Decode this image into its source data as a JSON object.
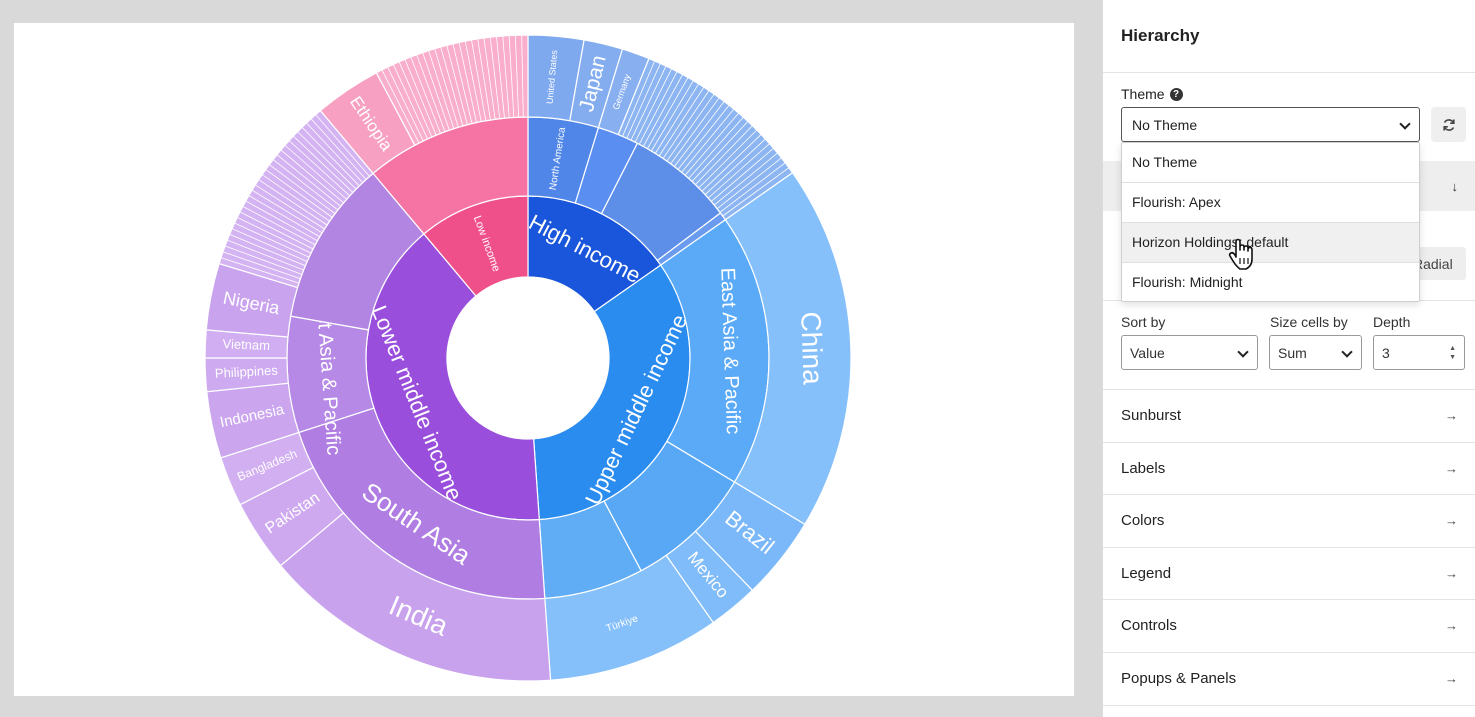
{
  "chart_data": {
    "type": "sunburst",
    "rings": {
      "income": [
        {
          "label": "High income",
          "color": "#1a56db",
          "start": 0,
          "end": 55
        },
        {
          "label": "Upper middle income",
          "color": "#2b8cf0",
          "start": 55,
          "end": 176
        },
        {
          "label": "Lower middle income",
          "color": "#9a4fdc",
          "start": 176,
          "end": 320
        },
        {
          "label": "Low income",
          "color": "#f0508a",
          "start": 320,
          "end": 360
        }
      ],
      "region": [
        {
          "label": "North America",
          "color": "#4f86e8",
          "start": 0,
          "end": 17
        },
        {
          "label": "",
          "color": "#5a8ef0",
          "start": 17,
          "end": 27
        },
        {
          "label": "",
          "color": "#5d8ee8",
          "start": 27,
          "end": 53
        },
        {
          "label": "",
          "color": "#6a9bef",
          "start": 53,
          "end": 55
        },
        {
          "label": "East Asia & Pacific",
          "color": "#5aaaf7",
          "start": 55,
          "end": 121
        },
        {
          "label": "",
          "color": "#58a8f5",
          "start": 121,
          "end": 152
        },
        {
          "label": "",
          "color": "#60adf6",
          "start": 152,
          "end": 176
        },
        {
          "label": "South Asia",
          "color": "#b07ee2",
          "start": 176,
          "end": 252
        },
        {
          "label": "East Asia & Pacific",
          "color": "#b689e6",
          "start": 252,
          "end": 280
        },
        {
          "label": "",
          "color": "#b385e3",
          "start": 280,
          "end": 320
        },
        {
          "label": "",
          "color": "#f674a4",
          "start": 320,
          "end": 360
        }
      ],
      "country": [
        {
          "label": "United States",
          "color": "#7ea9ee",
          "start": 0,
          "end": 10
        },
        {
          "label": "Japan",
          "color": "#84adf0",
          "start": 10,
          "end": 17
        },
        {
          "label": "Germany",
          "color": "#88b0f0",
          "start": 17,
          "end": 22
        },
        {
          "label": "",
          "color": "#8db5f2",
          "start": 22,
          "end": 55
        },
        {
          "label": "China",
          "color": "#85c0fb",
          "start": 55,
          "end": 121
        },
        {
          "label": "Brazil",
          "color": "#7ab8f9",
          "start": 121,
          "end": 136
        },
        {
          "label": "Mexico",
          "color": "#80bcf9",
          "start": 136,
          "end": 145
        },
        {
          "label": "Türkiye",
          "color": "#86c0fa",
          "start": 145,
          "end": 176
        },
        {
          "label": "India",
          "color": "#c9a2ee",
          "start": 176,
          "end": 230
        },
        {
          "label": "Pakistan",
          "color": "#cfa9f0",
          "start": 230,
          "end": 243
        },
        {
          "label": "Bangladesh",
          "color": "#d2aff1",
          "start": 243,
          "end": 252
        },
        {
          "label": "Indonesia",
          "color": "#cba6ef",
          "start": 252,
          "end": 264
        },
        {
          "label": "Philippines",
          "color": "#ceaaf0",
          "start": 264,
          "end": 270
        },
        {
          "label": "Vietnam",
          "color": "#d1aef1",
          "start": 270,
          "end": 275
        },
        {
          "label": "Nigeria",
          "color": "#c9a3ee",
          "start": 275,
          "end": 287
        },
        {
          "label": "",
          "color": "#d4b3f2",
          "start": 287,
          "end": 320
        },
        {
          "label": "Ethiopia",
          "color": "#f7a0c1",
          "start": 320,
          "end": 332
        },
        {
          "label": "",
          "color": "#f9aecb",
          "start": 332,
          "end": 360
        }
      ]
    }
  },
  "panel": {
    "title": "Hierarchy",
    "theme": {
      "label": "Theme",
      "help_icon": "question-circle-icon",
      "selected": "No Theme",
      "options": [
        "No Theme",
        "Flourish: Apex",
        "Horizon Holdings: default",
        "Flourish: Midnight"
      ],
      "hovered_index": 2,
      "refresh_icon": "refresh-icon"
    },
    "radial_label": "Radial",
    "sort_by": {
      "label": "Sort by",
      "value": "Value"
    },
    "size_cells_by": {
      "label": "Size cells by",
      "value": "Sum"
    },
    "depth": {
      "label": "Depth",
      "value": "3"
    },
    "sections": [
      "Sunburst",
      "Labels",
      "Colors",
      "Legend",
      "Controls",
      "Popups & Panels"
    ]
  }
}
